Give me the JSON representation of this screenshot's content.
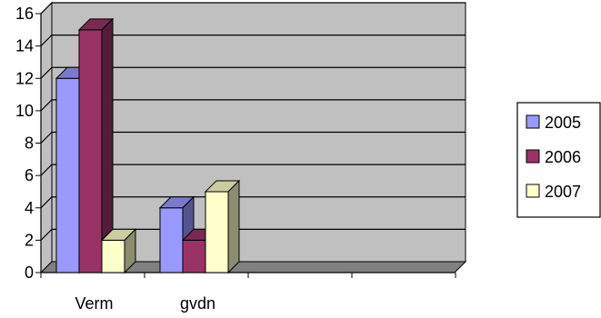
{
  "chart_data": {
    "type": "bar",
    "style": "3d-clustered-column",
    "categories": [
      "Verm",
      "gvdn"
    ],
    "series": [
      {
        "name": "2005",
        "values": [
          12,
          4
        ],
        "color": "#9999ff"
      },
      {
        "name": "2006",
        "values": [
          15,
          2
        ],
        "color": "#993366"
      },
      {
        "name": "2007",
        "values": [
          2,
          5
        ],
        "color": "#ffffcc"
      }
    ],
    "ylim": [
      0,
      16
    ],
    "yticks": [
      "0",
      "2",
      "4",
      "6",
      "8",
      "10",
      "12",
      "14",
      "16"
    ],
    "grid": true,
    "legend_position": "right",
    "wall_color": "#c0c0c0",
    "floor_color": "#808080"
  }
}
